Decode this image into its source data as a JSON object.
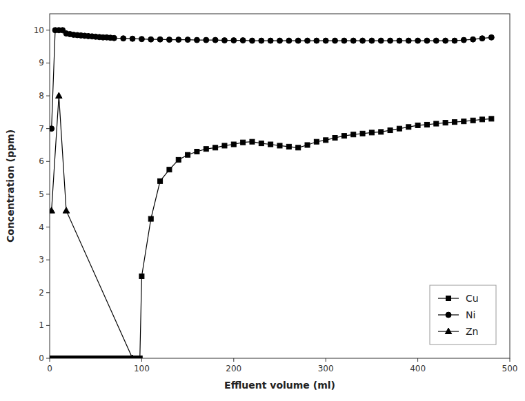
{
  "chart_data": {
    "type": "line",
    "xlabel": "Effluent volume (ml)",
    "ylabel": "Concentration (ppm)",
    "xlim": [
      0,
      500
    ],
    "ylim": [
      0,
      10.5
    ],
    "xticks": [
      0,
      100,
      200,
      300,
      400,
      500
    ],
    "yticks": [
      0,
      1,
      2,
      3,
      4,
      5,
      6,
      7,
      8,
      9,
      10
    ],
    "grid": false,
    "legend": "lower right",
    "series": [
      {
        "name": "Cu",
        "color": "#000000",
        "marker": "square",
        "x": [
          2,
          4,
          6,
          8,
          10,
          12,
          14,
          16,
          18,
          20,
          22,
          24,
          26,
          28,
          30,
          32,
          34,
          36,
          38,
          40,
          42,
          44,
          46,
          48,
          50,
          52,
          54,
          56,
          58,
          60,
          62,
          64,
          66,
          68,
          70,
          72,
          74,
          76,
          78,
          80,
          82,
          84,
          86,
          88,
          90,
          92,
          94,
          96,
          98,
          100,
          110,
          120,
          130,
          140,
          150,
          160,
          170,
          180,
          190,
          200,
          210,
          220,
          230,
          240,
          250,
          260,
          270,
          280,
          290,
          300,
          310,
          320,
          330,
          340,
          350,
          360,
          370,
          380,
          390,
          400,
          410,
          420,
          430,
          440,
          450,
          460,
          470,
          480
        ],
        "values": [
          0.0,
          0.0,
          0.0,
          0.0,
          0.0,
          0.0,
          0.0,
          0.0,
          0.0,
          0.0,
          0.0,
          0.0,
          0.0,
          0.0,
          0.0,
          0.0,
          0.0,
          0.0,
          0.0,
          0.0,
          0.0,
          0.0,
          0.0,
          0.0,
          0.0,
          0.0,
          0.0,
          0.0,
          0.0,
          0.0,
          0.0,
          0.0,
          0.0,
          0.0,
          0.0,
          0.0,
          0.0,
          0.0,
          0.0,
          0.0,
          0.0,
          0.0,
          0.0,
          0.0,
          0.0,
          0.0,
          0.0,
          0.0,
          0.0,
          2.5,
          4.25,
          5.4,
          5.75,
          6.05,
          6.2,
          6.3,
          6.38,
          6.42,
          6.48,
          6.52,
          6.58,
          6.6,
          6.55,
          6.52,
          6.48,
          6.45,
          6.42,
          6.5,
          6.6,
          6.65,
          6.72,
          6.78,
          6.82,
          6.85,
          6.88,
          6.9,
          6.95,
          7.0,
          7.05,
          7.1,
          7.12,
          7.15,
          7.18,
          7.2,
          7.22,
          7.25,
          7.28,
          7.3
        ]
      },
      {
        "name": "Ni",
        "color": "#000000",
        "marker": "circle",
        "x": [
          2,
          6,
          10,
          14,
          18,
          22,
          26,
          30,
          34,
          38,
          42,
          46,
          50,
          54,
          58,
          62,
          66,
          70,
          80,
          90,
          100,
          110,
          120,
          130,
          140,
          150,
          160,
          170,
          180,
          190,
          200,
          210,
          220,
          230,
          240,
          250,
          260,
          270,
          280,
          290,
          300,
          310,
          320,
          330,
          340,
          350,
          360,
          370,
          380,
          390,
          400,
          410,
          420,
          430,
          440,
          450,
          460,
          470,
          480
        ],
        "values": [
          7.0,
          10.0,
          10.0,
          10.0,
          9.9,
          9.88,
          9.86,
          9.85,
          9.84,
          9.83,
          9.82,
          9.81,
          9.8,
          9.79,
          9.78,
          9.78,
          9.77,
          9.76,
          9.75,
          9.74,
          9.73,
          9.72,
          9.72,
          9.71,
          9.71,
          9.71,
          9.7,
          9.7,
          9.7,
          9.69,
          9.69,
          9.69,
          9.68,
          9.68,
          9.68,
          9.68,
          9.68,
          9.68,
          9.68,
          9.68,
          9.68,
          9.68,
          9.68,
          9.68,
          9.68,
          9.68,
          9.68,
          9.68,
          9.68,
          9.68,
          9.68,
          9.68,
          9.68,
          9.68,
          9.68,
          9.7,
          9.72,
          9.75,
          9.78
        ]
      },
      {
        "name": "Zn",
        "color": "#000000",
        "marker": "triangle",
        "x": [
          2,
          10,
          18,
          90
        ],
        "values": [
          4.5,
          8.0,
          4.5,
          0.0
        ]
      }
    ]
  }
}
